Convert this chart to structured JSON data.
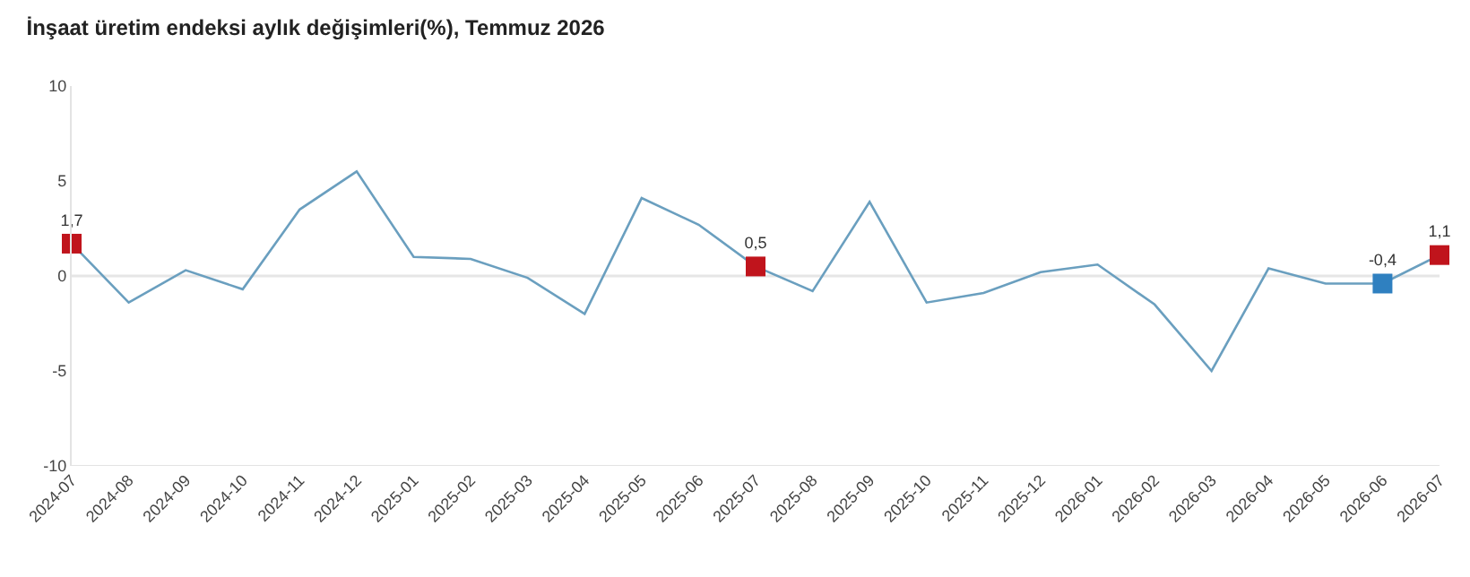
{
  "chart_data": {
    "type": "line",
    "title": "İnşaat üretim endeksi aylık değişimleri(%), Temmuz 2026",
    "categories": [
      "2024-07",
      "2024-08",
      "2024-09",
      "2024-10",
      "2024-11",
      "2024-12",
      "2025-01",
      "2025-02",
      "2025-03",
      "2025-04",
      "2025-05",
      "2025-06",
      "2025-07",
      "2025-08",
      "2025-09",
      "2025-10",
      "2025-11",
      "2025-12",
      "2026-01",
      "2026-02",
      "2026-03",
      "2026-04",
      "2026-05",
      "2026-06",
      "2026-07"
    ],
    "series": [
      {
        "color": "#6a9fbf",
        "marker": "none",
        "values": [
          1.7,
          -1.4,
          0.3,
          -0.7,
          3.5,
          5.5,
          1.0,
          0.9,
          -0.1,
          -2.0,
          4.1,
          2.7,
          0.5,
          -0.8,
          3.9,
          -1.4,
          -0.9,
          0.2,
          0.6,
          -1.5,
          -5.0,
          0.4,
          -0.4,
          -0.4,
          1.1
        ]
      },
      {
        "type": "scatter",
        "marker": "square",
        "color": "#c0141c",
        "values": [
          1.7,
          null,
          null,
          null,
          null,
          null,
          null,
          null,
          null,
          null,
          null,
          null,
          0.5,
          null,
          null,
          null,
          null,
          null,
          null,
          null,
          null,
          null,
          null,
          null,
          1.1
        ],
        "value_labels": [
          "1,7",
          null,
          null,
          null,
          null,
          null,
          null,
          null,
          null,
          null,
          null,
          null,
          "0,5",
          null,
          null,
          null,
          null,
          null,
          null,
          null,
          null,
          null,
          null,
          null,
          "1,1"
        ]
      },
      {
        "type": "scatter",
        "marker": "square",
        "color": "#2f80c0",
        "values": [
          null,
          null,
          null,
          null,
          null,
          null,
          null,
          null,
          null,
          null,
          null,
          null,
          null,
          null,
          null,
          null,
          null,
          null,
          null,
          null,
          null,
          null,
          null,
          -0.4,
          null
        ],
        "value_labels": [
          null,
          null,
          null,
          null,
          null,
          null,
          null,
          null,
          null,
          null,
          null,
          null,
          null,
          null,
          null,
          null,
          null,
          null,
          null,
          null,
          null,
          null,
          null,
          "-0,4",
          null
        ]
      }
    ],
    "ylim": [
      -10,
      10
    ],
    "yticks": [
      -10,
      -5,
      0,
      5,
      10
    ],
    "grid": false,
    "legend": false,
    "ref_lines": [
      {
        "axis": "y",
        "value": 0,
        "color": "#e6e6e6"
      }
    ]
  }
}
